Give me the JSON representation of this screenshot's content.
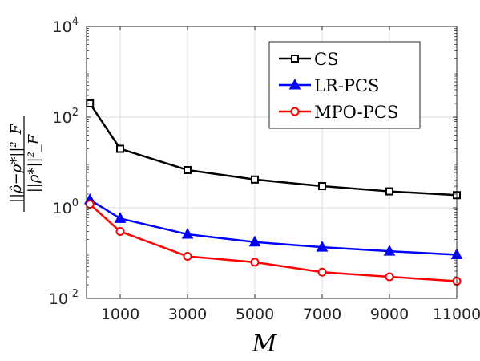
{
  "chart_data": {
    "type": "line",
    "xlabel": "M",
    "ylabel": {
      "numerator": "||ρ̂−ρ*||²_F",
      "denominator": "||ρ*||²_F"
    },
    "yscale": "log",
    "ylim": [
      0.01,
      10000
    ],
    "xlim": [
      0,
      11000
    ],
    "grid": true,
    "legend_position": "top-right",
    "x_ticks": [
      1000,
      3000,
      5000,
      7000,
      9000,
      11000
    ],
    "x_tick_labels": [
      "1000",
      "3000",
      "5000",
      "7000",
      "9000",
      "11000"
    ],
    "y_ticks": [
      0.01,
      1,
      100,
      10000
    ],
    "y_tick_labels": [
      {
        "base": "10",
        "exp": "-2"
      },
      {
        "base": "10",
        "exp": "0"
      },
      {
        "base": "10",
        "exp": "2"
      },
      {
        "base": "10",
        "exp": "4"
      }
    ],
    "x": [
      100,
      1000,
      3000,
      5000,
      7000,
      9000,
      11000
    ],
    "series": [
      {
        "name": "CS",
        "color": "#000000",
        "marker": "square",
        "values": [
          200,
          20,
          6.8,
          4.2,
          3.0,
          2.3,
          1.9
        ]
      },
      {
        "name": "LR-PCS",
        "color": "#0000ff",
        "marker": "triangle",
        "values": [
          1.5,
          0.58,
          0.26,
          0.175,
          0.135,
          0.11,
          0.092
        ]
      },
      {
        "name": "MPO-PCS",
        "color": "#ff0000",
        "marker": "circle",
        "values": [
          1.2,
          0.3,
          0.085,
          0.063,
          0.038,
          0.03,
          0.024
        ]
      }
    ]
  }
}
